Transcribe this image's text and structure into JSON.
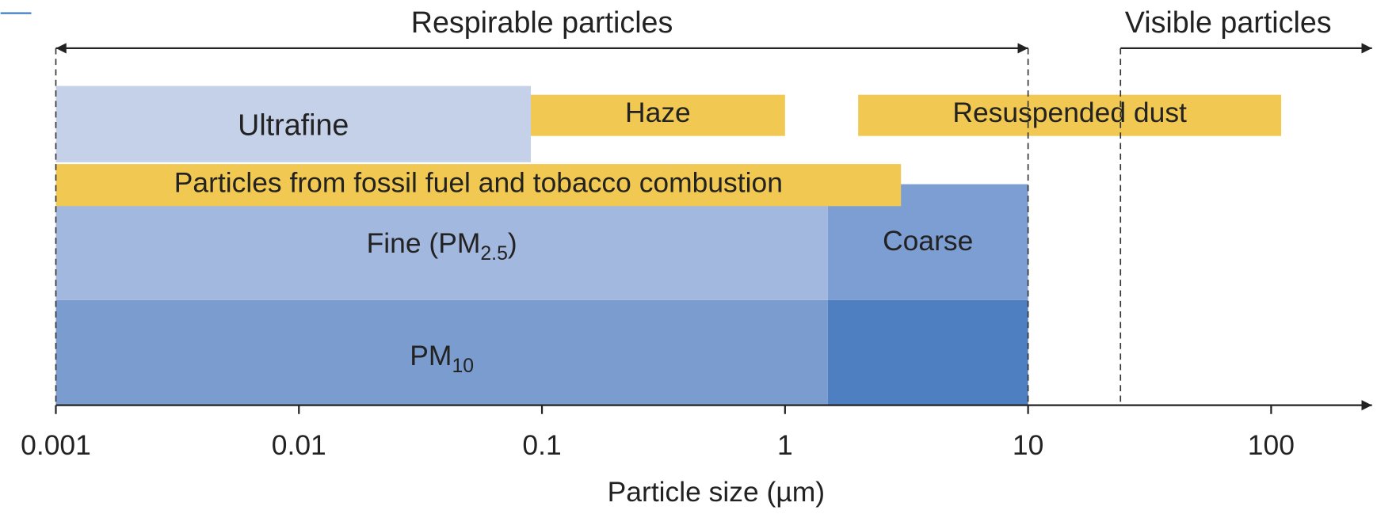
{
  "arrows": [
    {
      "label": "Respirable particles",
      "from": 0.001,
      "to": 10
    },
    {
      "label": "Visible particles",
      "from": 24
    }
  ],
  "bands": [
    {
      "label": "Ultrafine",
      "from": 0.001,
      "to": 0.09,
      "color": "#c5d1e9"
    },
    {
      "label": "Haze",
      "from": 0.09,
      "to": 1,
      "color": "#f1c852"
    },
    {
      "label": "Resuspended dust",
      "from": 2,
      "to": 110,
      "color": "#f1c852"
    },
    {
      "label": "Fine (PM",
      "sub": "2.5",
      "label_end": ")",
      "from": 0.001,
      "to": 1.5,
      "color": "#a3b8de"
    },
    {
      "label": "Coarse",
      "from": 1.5,
      "to": 10,
      "color": "#7c9ed3"
    },
    {
      "label": "Particles from fossil fuel and tobacco combustion",
      "from": 0.001,
      "to": 3,
      "color": "#f1c852"
    },
    {
      "label": "PM",
      "sub": "10",
      "from": 0.001,
      "to": 1.5,
      "color": "#7a9ccf"
    },
    {
      "from": 1.5,
      "to": 10,
      "color": "#4e7fc0"
    }
  ],
  "axis": {
    "label": "Particle size (µm)",
    "scale": "log",
    "xlim": [
      0.001,
      260
    ],
    "xticks": [
      0.001,
      0.01,
      0.1,
      1,
      10,
      100
    ]
  }
}
